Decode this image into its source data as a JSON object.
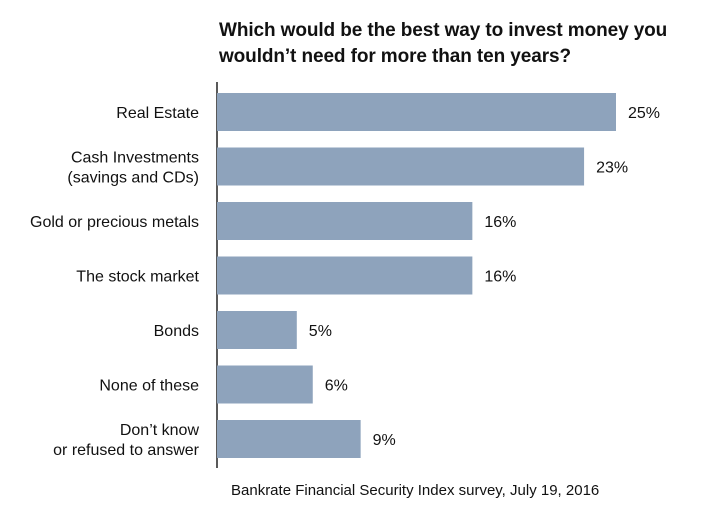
{
  "title": "Which would be the best way to invest money you wouldn’t need for more than ten years?",
  "source": "Bankrate Financial Security Index survey, July 19, 2016",
  "chart_data": {
    "type": "bar",
    "orientation": "horizontal",
    "title": "Which would be the best way to invest money you wouldn’t need for more than ten years?",
    "categories": [
      [
        "Real Estate"
      ],
      [
        "Cash Investments",
        "(savings and CDs)"
      ],
      [
        "Gold or precious metals"
      ],
      [
        "The stock market"
      ],
      [
        "Bonds"
      ],
      [
        "None of these"
      ],
      [
        "Don’t know",
        "or refused to answer"
      ]
    ],
    "values": [
      25,
      23,
      16,
      16,
      5,
      6,
      9
    ],
    "value_labels": [
      "25%",
      "23%",
      "16%",
      "16%",
      "5%",
      "6%",
      "9%"
    ],
    "unit": "%",
    "xlim": [
      0,
      25
    ],
    "bar_color": "#8ea3bc",
    "grid": false,
    "legend": "none"
  }
}
